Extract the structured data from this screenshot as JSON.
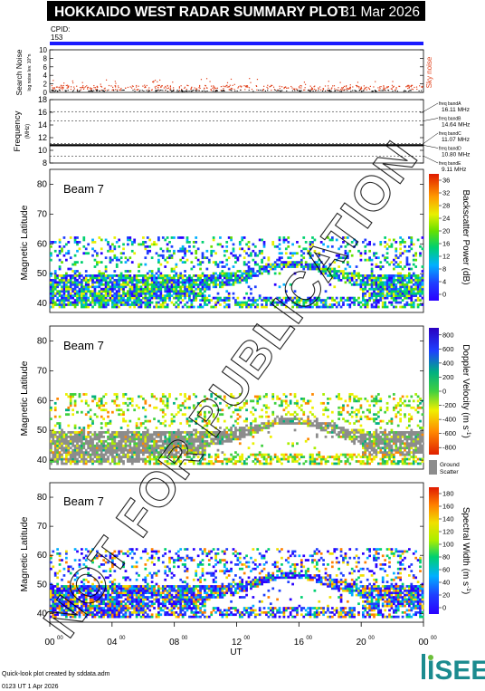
{
  "header": {
    "title": "HOKKAIDO WEST RADAR SUMMARY PLOT",
    "date": "31 Mar 2026",
    "cpid_label": "CPID:",
    "cpid_value": "153"
  },
  "footer": {
    "credit": "Quick-look plot created by sddata.adm",
    "timestamp": "0123 UT  1 Apr 2026",
    "logo_text": "ISEE"
  },
  "watermark": "NOT FOR PUBLICATION",
  "colors": {
    "cpid_bar": "#1a1aff",
    "noise_points": "#e0401a",
    "ground_scatter": "#8c8c8c",
    "title_bg": "#000000",
    "logo_teal": "#1b8b8f",
    "logo_green": "#6cbf3a"
  },
  "chart_data": [
    {
      "type": "scatter",
      "title": "",
      "xlabel": "",
      "ylabel": "Search Noise",
      "ylabel_sub": "log noise lev. 10^n",
      "right_label": "Sky noise",
      "ylim": [
        0,
        10
      ],
      "yticks": [
        0,
        2,
        4,
        6,
        8,
        10
      ],
      "xlim": [
        0,
        24
      ],
      "series": [
        {
          "values_description": "",
          "level": 1.0
        }
      ]
    },
    {
      "type": "line",
      "title": "",
      "ylabel": "Frequency",
      "ylabel_unit": "(MHz)",
      "ylim": [
        8,
        18
      ],
      "yticks": [
        8,
        10,
        12,
        14,
        16,
        18
      ],
      "xlim": [
        0,
        24
      ],
      "freq_bands": [
        {
          "label": "freq bandA",
          "value": "16.11 MHz",
          "freq": 16.11
        },
        {
          "label": "freq bandB",
          "value": "14.64 MHz",
          "freq": 14.64
        },
        {
          "label": "freq bandC",
          "value": "11.07 MHz",
          "freq": 11.07
        },
        {
          "label": "freq bandD",
          "value": "10.80 MHz",
          "freq": 10.8
        },
        {
          "label": "freq bandE",
          "value": "9.11 MHz",
          "freq": 9.11
        }
      ],
      "operating_frequency": 10.8
    },
    {
      "type": "heatmap",
      "beam_label": "Beam  7",
      "ylabel": "Magnetic Latitude",
      "ylim": [
        37,
        85
      ],
      "yticks": [
        40,
        50,
        60,
        70,
        80
      ],
      "colorbar_label": "Backscatter Power (dB)",
      "colorbar_ticks": [
        "0",
        "4",
        "8",
        "12",
        "16",
        "20",
        "24",
        "28",
        "32",
        "36"
      ],
      "colorbar_range": [
        0,
        38
      ]
    },
    {
      "type": "heatmap",
      "beam_label": "Beam  7",
      "ylabel": "Magnetic Latitude",
      "ylim": [
        37,
        85
      ],
      "yticks": [
        40,
        50,
        60,
        70,
        80
      ],
      "colorbar_label": "Doppler Velocity (m s",
      "colorbar_sup": "-1",
      "colorbar_ticks": [
        "-800",
        "-600",
        "-400",
        "-200",
        "0",
        "200",
        "400",
        "600",
        "800"
      ],
      "colorbar_range": [
        -900,
        900
      ],
      "ground_label_1": "Ground",
      "ground_label_2": "Scatter"
    },
    {
      "type": "heatmap",
      "beam_label": "Beam  7",
      "ylabel": "Magnetic Latitude",
      "ylim": [
        37,
        85
      ],
      "yticks": [
        40,
        50,
        60,
        70,
        80
      ],
      "colorbar_label": "Spectral Width (m s",
      "colorbar_sup": "-1",
      "colorbar_ticks": [
        "0",
        "20",
        "40",
        "60",
        "80",
        "100",
        "120",
        "140",
        "160",
        "180"
      ],
      "colorbar_range": [
        0,
        190
      ],
      "xlabel": "UT",
      "xticks": [
        "00",
        "04",
        "08",
        "12",
        "16",
        "20",
        "00"
      ],
      "xtick_sup": "00"
    }
  ]
}
